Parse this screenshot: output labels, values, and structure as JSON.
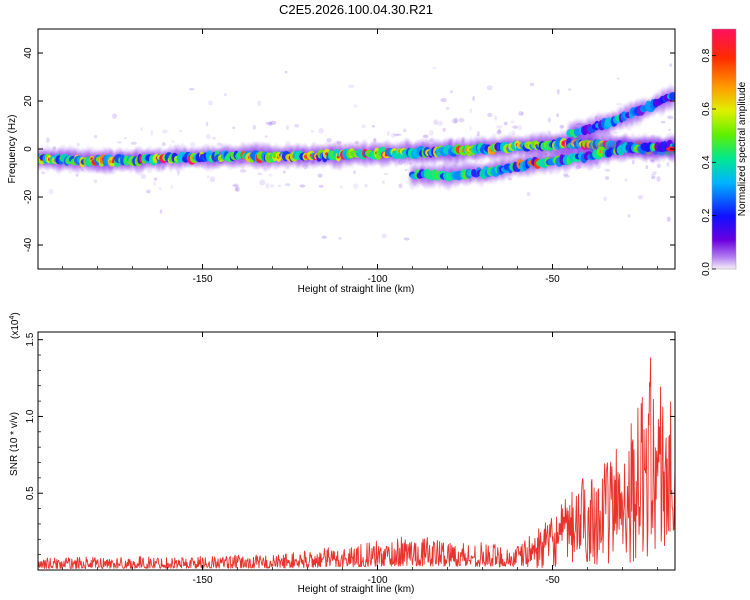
{
  "title": "C2E5.2026.100.04.30.R21",
  "chart_data": [
    {
      "type": "heatmap",
      "name": "spectrogram",
      "xlabel": "Height of straight line (km)",
      "ylabel": "Frequency (Hz)",
      "xlim": [
        -197,
        -15
      ],
      "ylim": [
        -50,
        50
      ],
      "xticks": [
        -150,
        -100,
        -50
      ],
      "xtick_labels": [
        "-150",
        "-100",
        "-50"
      ],
      "yticks": [
        -40,
        -20,
        0,
        20,
        40
      ],
      "ytick_labels": [
        "-40",
        "-20",
        "0",
        "20",
        "40"
      ],
      "colorbar": {
        "label": "Normalized spectral amplitude",
        "range": [
          0,
          0.9
        ],
        "ticks": [
          0.0,
          0.2,
          0.4,
          0.6,
          0.8
        ],
        "tick_labels": [
          "0.0",
          "0.2",
          "0.4",
          "0.6",
          "0.8"
        ]
      },
      "tracks": [
        {
          "name": "main-carrier",
          "x": [
            -197,
            -180,
            -160,
            -140,
            -120,
            -100,
            -80,
            -60,
            -50,
            -40,
            -30,
            -20,
            -15
          ],
          "y": [
            -4,
            -5,
            -4,
            -3,
            -3,
            -2,
            -1,
            1,
            2,
            2,
            1,
            0,
            0
          ]
        },
        {
          "name": "lower-branch",
          "x": [
            -90,
            -80,
            -70,
            -60,
            -50,
            -40,
            -30,
            -20,
            -15
          ],
          "y": [
            -11,
            -11,
            -10,
            -7,
            -5,
            -3,
            0,
            1,
            1
          ]
        },
        {
          "name": "upper-branch",
          "x": [
            -45,
            -40,
            -35,
            -30,
            -25,
            -20,
            -15
          ],
          "y": [
            6,
            8,
            10,
            13,
            16,
            19,
            22
          ]
        }
      ]
    },
    {
      "type": "line",
      "name": "snr",
      "xlabel": "Height of straight line (km)",
      "ylabel": "SNR (10 * v/v)",
      "scale_note": "(x10",
      "scale_exp": "4",
      "scale_close": ")",
      "xlim": [
        -197,
        -15
      ],
      "ylim": [
        0,
        15500
      ],
      "xticks": [
        -150,
        -100,
        -50
      ],
      "xtick_labels": [
        "-150",
        "-100",
        "-50"
      ],
      "yticks": [
        5000,
        10000,
        15000
      ],
      "ytick_labels": [
        "0.5",
        "1.0",
        "1.5"
      ],
      "color": "#e8322c",
      "envelope": {
        "x": [
          -197,
          -160,
          -130,
          -110,
          -100,
          -90,
          -80,
          -70,
          -60,
          -55,
          -50,
          -45,
          -40,
          -35,
          -30,
          -25,
          -22,
          -20,
          -18,
          -15
        ],
        "y": [
          800,
          900,
          1000,
          1600,
          1900,
          2300,
          2000,
          1800,
          1600,
          2500,
          3500,
          5000,
          6500,
          7000,
          9000,
          11000,
          14000,
          13000,
          12000,
          10500
        ]
      }
    }
  ]
}
